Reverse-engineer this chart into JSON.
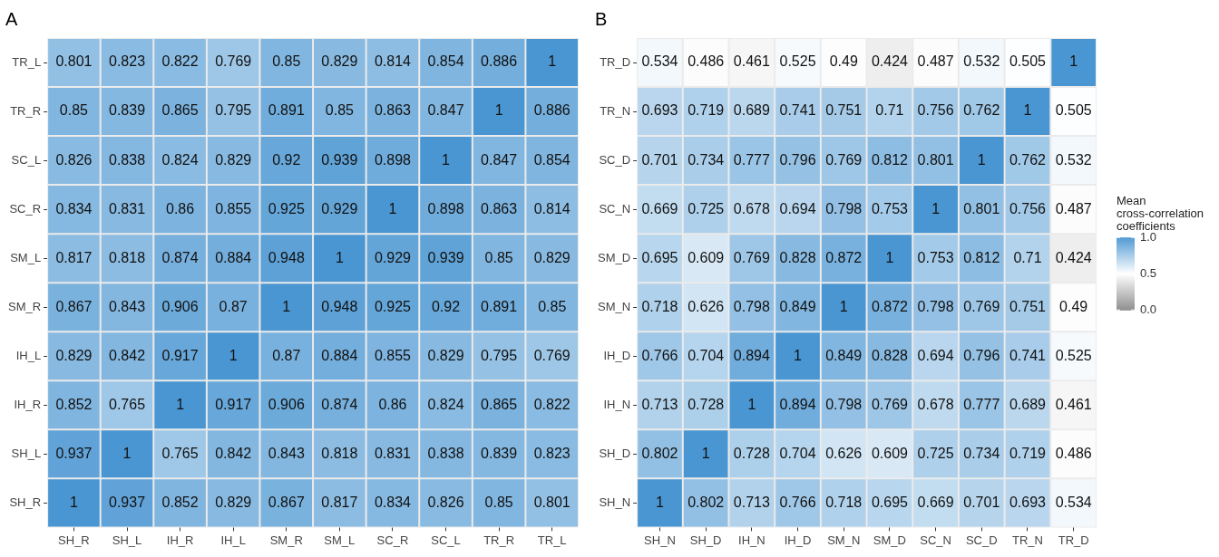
{
  "chart_data": [
    {
      "type": "heatmap",
      "title": "A",
      "data_labels": true,
      "categories": [
        "SH_R",
        "SH_L",
        "IH_R",
        "IH_L",
        "SM_R",
        "SM_L",
        "SC_R",
        "SC_L",
        "TR_R",
        "TR_L"
      ],
      "y_categories": [
        "TR_L",
        "TR_R",
        "SC_L",
        "SC_R",
        "SM_L",
        "SM_R",
        "IH_L",
        "IH_R",
        "SH_L",
        "SH_R"
      ],
      "cells": [
        [
          0.801,
          0.823,
          0.822,
          0.769,
          0.85,
          0.829,
          0.814,
          0.854,
          0.886,
          1
        ],
        [
          0.85,
          0.839,
          0.865,
          0.795,
          0.891,
          0.85,
          0.863,
          0.847,
          1,
          0.886
        ],
        [
          0.826,
          0.838,
          0.824,
          0.829,
          0.92,
          0.939,
          0.898,
          1,
          0.847,
          0.854
        ],
        [
          0.834,
          0.831,
          0.86,
          0.855,
          0.925,
          0.929,
          1,
          0.898,
          0.863,
          0.814
        ],
        [
          0.817,
          0.818,
          0.874,
          0.884,
          0.948,
          1,
          0.929,
          0.939,
          0.85,
          0.829
        ],
        [
          0.867,
          0.843,
          0.906,
          0.87,
          1,
          0.948,
          0.925,
          0.92,
          0.891,
          0.85
        ],
        [
          0.829,
          0.842,
          0.917,
          1,
          0.87,
          0.884,
          0.855,
          0.829,
          0.795,
          0.769
        ],
        [
          0.852,
          0.765,
          1,
          0.917,
          0.906,
          0.874,
          0.86,
          0.824,
          0.865,
          0.822
        ],
        [
          0.937,
          1,
          0.765,
          0.842,
          0.843,
          0.818,
          0.831,
          0.838,
          0.839,
          0.823
        ],
        [
          1,
          0.937,
          0.852,
          0.829,
          0.867,
          0.817,
          0.834,
          0.826,
          0.85,
          0.801
        ]
      ]
    },
    {
      "type": "heatmap",
      "title": "B",
      "clim": [
        0,
        1
      ],
      "data_labels": true,
      "clabel": "Mean cross-correlation coefficients",
      "cticks": [
        {
          "value": 0,
          "label": "0.0"
        },
        {
          "value": 0.5,
          "label": "0.5"
        },
        {
          "value": 1,
          "label": "1.0"
        }
      ],
      "categories": [
        "SH_N",
        "SH_D",
        "IH_N",
        "IH_D",
        "SM_N",
        "SM_D",
        "SC_N",
        "SC_D",
        "TR_N",
        "TR_D"
      ],
      "y_categories": [
        "TR_D",
        "TR_N",
        "SC_D",
        "SC_N",
        "SM_D",
        "SM_N",
        "IH_D",
        "IH_N",
        "SH_D",
        "SH_N"
      ],
      "cells": [
        [
          0.534,
          0.486,
          0.461,
          0.525,
          0.49,
          0.424,
          0.487,
          0.532,
          0.505,
          1
        ],
        [
          0.693,
          0.719,
          0.689,
          0.741,
          0.751,
          0.71,
          0.756,
          0.762,
          1,
          0.505
        ],
        [
          0.701,
          0.734,
          0.777,
          0.796,
          0.769,
          0.812,
          0.801,
          1,
          0.762,
          0.532
        ],
        [
          0.669,
          0.725,
          0.678,
          0.694,
          0.798,
          0.753,
          1,
          0.801,
          0.756,
          0.487
        ],
        [
          0.695,
          0.609,
          0.769,
          0.828,
          0.872,
          1,
          0.753,
          0.812,
          0.71,
          0.424
        ],
        [
          0.718,
          0.626,
          0.798,
          0.849,
          1,
          0.872,
          0.798,
          0.769,
          0.751,
          0.49
        ],
        [
          0.766,
          0.704,
          0.894,
          1,
          0.849,
          0.828,
          0.694,
          0.796,
          0.741,
          0.525
        ],
        [
          0.713,
          0.728,
          1,
          0.894,
          0.798,
          0.769,
          0.678,
          0.777,
          0.689,
          0.461
        ],
        [
          0.802,
          1,
          0.728,
          0.704,
          0.626,
          0.609,
          0.725,
          0.734,
          0.719,
          0.486
        ],
        [
          1,
          0.802,
          0.713,
          0.766,
          0.718,
          0.695,
          0.669,
          0.701,
          0.693,
          0.534
        ]
      ]
    }
  ]
}
